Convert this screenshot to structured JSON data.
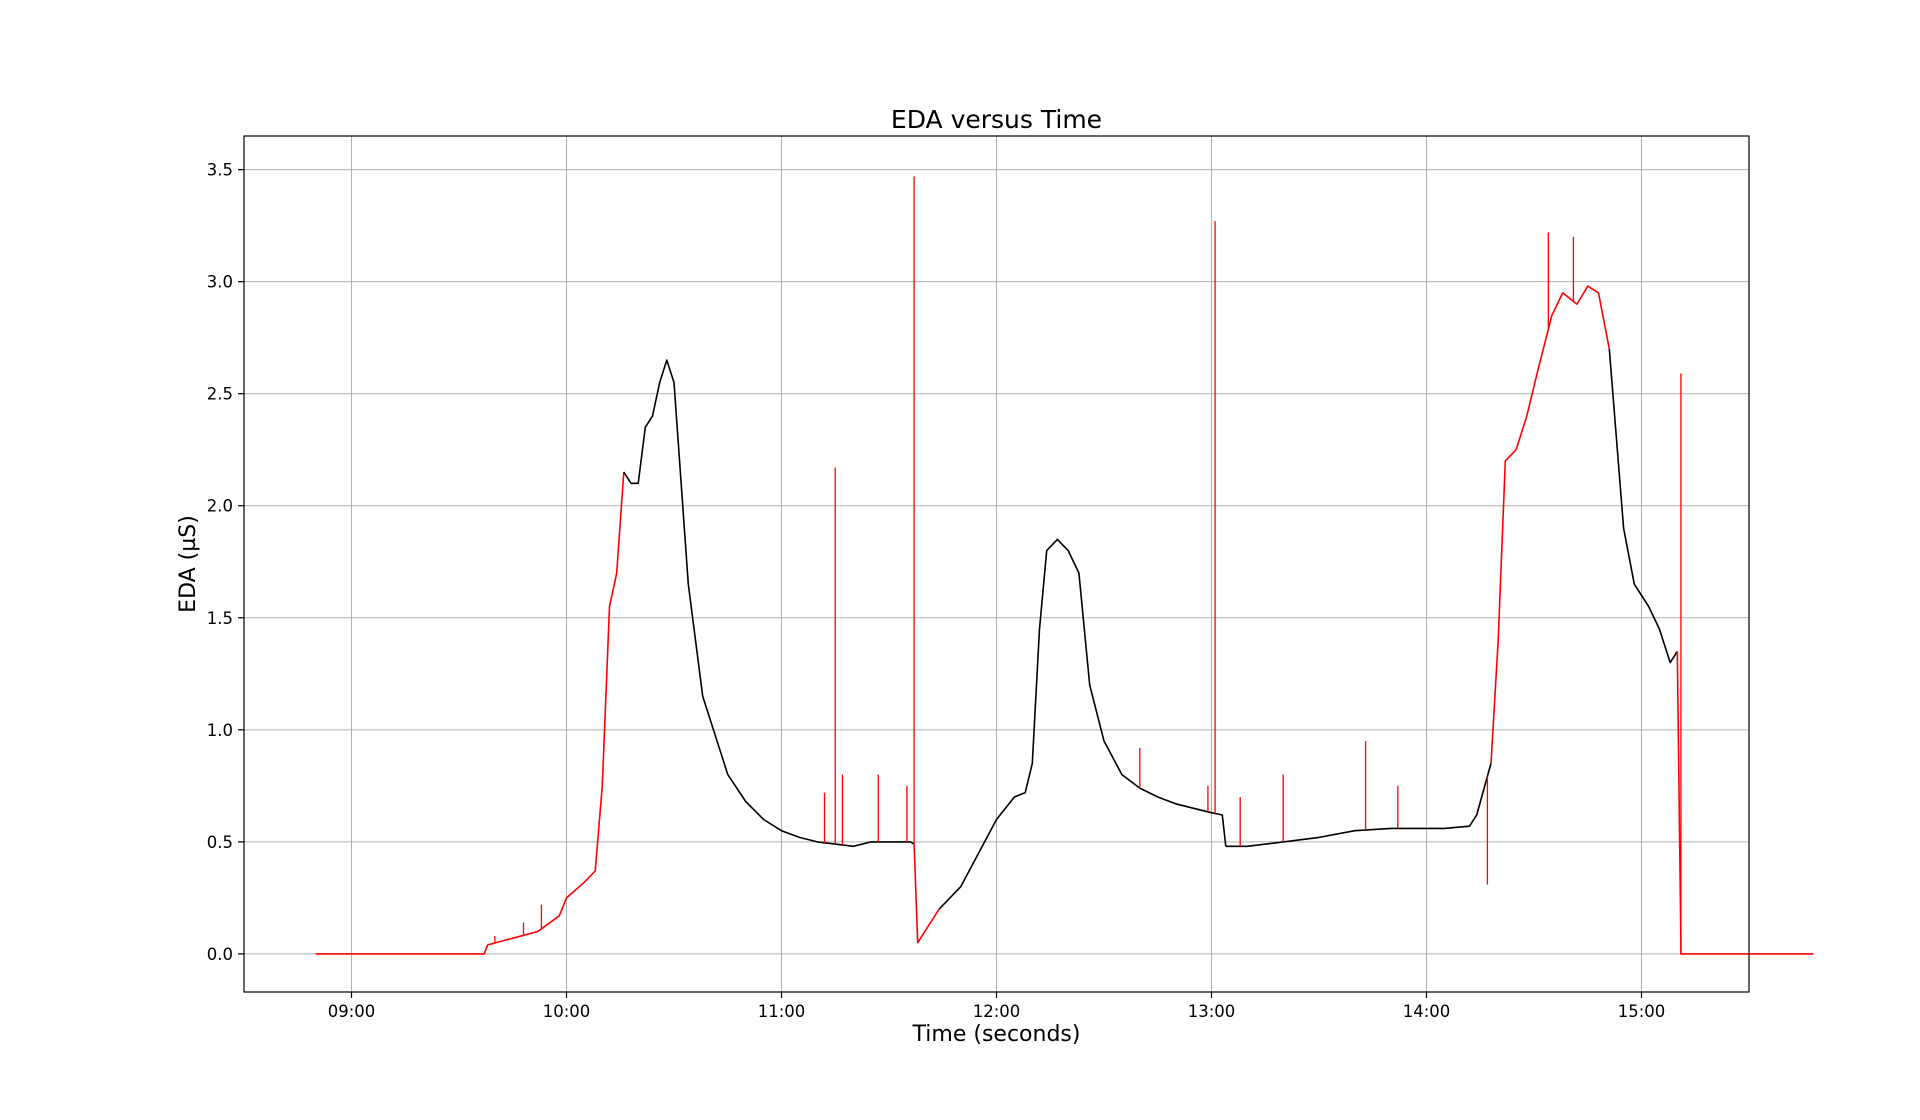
{
  "chart_data": {
    "type": "line",
    "title": "EDA versus Time",
    "xlabel": "Time (seconds)",
    "ylabel": "EDA (µS)",
    "xlim": [
      "08:30",
      "15:30"
    ],
    "ylim": [
      -0.17,
      3.65
    ],
    "x_ticks": [
      "09:00",
      "10:00",
      "11:00",
      "12:00",
      "13:00",
      "14:00",
      "15:00"
    ],
    "y_ticks": [
      "0.0",
      "0.5",
      "1.0",
      "1.5",
      "2.0",
      "2.5",
      "3.0",
      "3.5"
    ],
    "grid": true,
    "colors": {
      "eda": "#000000",
      "artifact": "#ff0000",
      "grid": "#b0b0b0"
    },
    "series": [
      {
        "color": "#ff0000",
        "x": [
          "08:50",
          "09:10",
          "09:30",
          "09:37",
          "09:38",
          "09:45",
          "09:52",
          "09:58",
          "10:00",
          "10:05",
          "10:08",
          "10:10",
          "10:12",
          "10:14",
          "10:16"
        ],
        "y": [
          0.0,
          0.0,
          0.0,
          0.0,
          0.04,
          0.07,
          0.1,
          0.17,
          0.25,
          0.32,
          0.37,
          0.75,
          1.55,
          1.7,
          2.15
        ]
      },
      {
        "color": "#000000",
        "x": [
          "10:16",
          "10:18",
          "10:20",
          "10:22",
          "10:24",
          "10:26",
          "10:28",
          "10:30",
          "10:34",
          "10:38",
          "10:45",
          "10:50",
          "10:55",
          "11:00",
          "11:05",
          "11:10",
          "11:15",
          "11:20",
          "11:25",
          "11:30",
          "11:36",
          "11:37"
        ],
        "y": [
          2.15,
          2.1,
          2.1,
          2.35,
          2.4,
          2.55,
          2.65,
          2.55,
          1.65,
          1.15,
          0.8,
          0.68,
          0.6,
          0.55,
          0.52,
          0.5,
          0.49,
          0.48,
          0.5,
          0.5,
          0.5,
          0.49
        ]
      },
      {
        "color": "#ff0000",
        "x": [
          "11:37",
          "11:38",
          "11:40",
          "11:42",
          "11:44"
        ],
        "y": [
          0.49,
          0.05,
          0.1,
          0.15,
          0.2
        ]
      },
      {
        "color": "#000000",
        "x": [
          "11:44",
          "11:50",
          "11:55",
          "12:00",
          "12:05",
          "12:08",
          "12:10",
          "12:12",
          "12:14",
          "12:17",
          "12:20",
          "12:23",
          "12:26",
          "12:30",
          "12:35",
          "12:40",
          "12:45",
          "12:50",
          "12:55",
          "13:00",
          "13:03",
          "13:04"
        ],
        "y": [
          0.2,
          0.3,
          0.45,
          0.6,
          0.7,
          0.72,
          0.85,
          1.45,
          1.8,
          1.85,
          1.8,
          1.7,
          1.2,
          0.95,
          0.8,
          0.74,
          0.7,
          0.67,
          0.65,
          0.63,
          0.62,
          0.48
        ]
      },
      {
        "color": "#000000",
        "x": [
          "13:04",
          "13:10",
          "13:20",
          "13:30",
          "13:40",
          "13:50",
          "14:00",
          "14:05",
          "14:12",
          "14:14",
          "14:18"
        ],
        "y": [
          0.48,
          0.48,
          0.5,
          0.52,
          0.55,
          0.56,
          0.56,
          0.56,
          0.57,
          0.62,
          0.85
        ]
      },
      {
        "color": "#ff0000",
        "x": [
          "14:18",
          "14:20",
          "14:22",
          "14:25",
          "14:28",
          "14:31",
          "14:35",
          "14:38",
          "14:42",
          "14:45",
          "14:48",
          "14:51"
        ],
        "y": [
          0.85,
          1.4,
          2.2,
          2.25,
          2.4,
          2.6,
          2.85,
          2.95,
          2.9,
          2.98,
          2.95,
          2.7
        ]
      },
      {
        "color": "#000000",
        "x": [
          "14:51",
          "14:55",
          "14:58",
          "15:02",
          "15:05",
          "15:08",
          "15:10"
        ],
        "y": [
          2.7,
          1.9,
          1.65,
          1.55,
          1.45,
          1.3,
          1.35
        ]
      },
      {
        "color": "#ff0000",
        "x": [
          "15:10",
          "15:11",
          "15:11",
          "15:20",
          "15:30",
          "15:40",
          "15:48"
        ],
        "y": [
          1.35,
          0.05,
          0.0,
          0.0,
          0.0,
          0.0,
          0.0
        ]
      }
    ],
    "artifact_spikes": [
      {
        "x": "09:40",
        "y": 0.08
      },
      {
        "x": "09:48",
        "y": 0.14
      },
      {
        "x": "09:53",
        "y": 0.22
      },
      {
        "x": "11:12",
        "y": 0.72
      },
      {
        "x": "11:15",
        "y": 2.17
      },
      {
        "x": "11:17",
        "y": 0.8
      },
      {
        "x": "11:27",
        "y": 0.8
      },
      {
        "x": "11:35",
        "y": 0.75
      },
      {
        "x": "11:37",
        "y": 3.47
      },
      {
        "x": "12:40",
        "y": 0.92
      },
      {
        "x": "12:59",
        "y": 0.75
      },
      {
        "x": "13:01",
        "y": 3.27
      },
      {
        "x": "13:08",
        "y": 0.7
      },
      {
        "x": "13:20",
        "y": 0.8
      },
      {
        "x": "13:43",
        "y": 0.95
      },
      {
        "x": "13:52",
        "y": 0.75
      },
      {
        "x": "14:17",
        "y": 0.31
      },
      {
        "x": "14:34",
        "y": 3.22
      },
      {
        "x": "14:41",
        "y": 3.2
      },
      {
        "x": "15:11",
        "y": 2.59
      }
    ]
  }
}
